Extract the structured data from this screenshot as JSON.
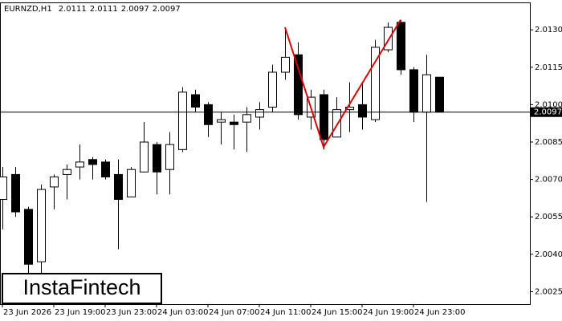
{
  "chart_data": {
    "type": "candlestick",
    "symbol": "EURNZD,H1",
    "header_values": [
      2.0111,
      2.0111,
      2.0097,
      2.0097
    ],
    "watermark": "InstaFintech",
    "categories": [
      "23 Jun 2026",
      null,
      null,
      null,
      "23 Jun 19:00",
      null,
      null,
      null,
      "23 Jun 23:00",
      null,
      null,
      null,
      "24 Jun 03:00",
      null,
      null,
      null,
      "24 Jun 07:00",
      null,
      null,
      null,
      "24 Jun 11:00",
      null,
      null,
      null,
      "24 Jun 15:00",
      null,
      null,
      null,
      "24 Jun 19:00",
      null,
      null,
      null,
      "24 Jun 23:00",
      null,
      null
    ],
    "open": [
      2.0062,
      2.0072,
      2.0058,
      2.0037,
      2.0067,
      2.0072,
      2.0075,
      2.0078,
      2.0077,
      2.0072,
      2.0063,
      2.0073,
      2.0084,
      2.0074,
      2.0082,
      2.0104,
      2.01,
      2.0093,
      2.0093,
      2.0093,
      2.0095,
      2.0099,
      2.0113,
      2.012,
      2.0095,
      2.0104,
      2.0087,
      2.0098,
      2.01,
      2.0094,
      2.0122,
      2.0133,
      2.0114,
      2.0097,
      2.0111
    ],
    "high": [
      2.0075,
      2.0075,
      2.0059,
      2.0068,
      2.0072,
      2.0076,
      2.0084,
      2.0079,
      2.0078,
      2.0078,
      2.0075,
      2.0093,
      2.0085,
      2.0089,
      2.0107,
      2.0106,
      2.0101,
      2.0097,
      2.0096,
      2.0099,
      2.0101,
      2.0116,
      2.0131,
      2.0125,
      2.0106,
      2.0106,
      2.0103,
      2.0109,
      2.0109,
      2.0126,
      2.0133,
      2.0134,
      2.0115,
      2.012,
      2.0111
    ],
    "low": [
      2.005,
      2.0055,
      2.0032,
      2.0032,
      2.0058,
      2.0062,
      2.007,
      2.007,
      2.007,
      2.0042,
      2.0063,
      2.0073,
      2.0064,
      2.0064,
      2.0081,
      2.0097,
      2.0087,
      2.0084,
      2.0082,
      2.0081,
      2.009,
      2.0097,
      2.011,
      2.0094,
      2.009,
      2.0082,
      2.0087,
      2.0089,
      2.009,
      2.0093,
      2.0121,
      2.0112,
      2.0093,
      2.0061,
      2.0097
    ],
    "close": [
      2.0071,
      2.0057,
      2.0036,
      2.0066,
      2.0071,
      2.0074,
      2.0077,
      2.0076,
      2.0071,
      2.0062,
      2.0074,
      2.0085,
      2.0073,
      2.0084,
      2.0105,
      2.0099,
      2.0092,
      2.0094,
      2.0092,
      2.0096,
      2.0098,
      2.0113,
      2.0119,
      2.0096,
      2.0103,
      2.0086,
      2.0098,
      2.0099,
      2.0095,
      2.0123,
      2.0131,
      2.0114,
      2.0097,
      2.0112,
      2.0097
    ],
    "up_color": "#ffffff",
    "down_color": "#000000",
    "current_price": 2.0097,
    "pattern": {
      "color": "#e00000",
      "x": [
        22,
        25,
        31
      ],
      "values": [
        2.0131,
        2.0083,
        2.0134
      ]
    },
    "ylim": [
      2.002,
      2.0141
    ],
    "yticks": [
      {
        "value": 2.013,
        "label": "2.0130"
      },
      2.0115,
      {
        "value": 2.01,
        "label": "2.0100"
      },
      2.0085,
      {
        "value": 2.007,
        "label": "2.0070"
      },
      2.0055,
      {
        "value": 2.004,
        "label": "2.0040"
      },
      2.0025
    ]
  }
}
